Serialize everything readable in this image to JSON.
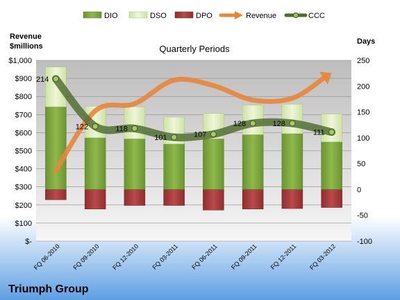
{
  "company": "Triumph Group",
  "colors": {
    "dio": "#7ba23f",
    "dso": "#d7e8b0",
    "dpo": "#a33a3a",
    "revenue": "#e8863a",
    "ccc": "#4e6b2e",
    "plot_bg_top": "#c8c8c8",
    "plot_bg_bottom": "#f4f4f4",
    "page_bg_top": "#ffffff",
    "page_bg_bottom": "#6aa8e6"
  },
  "chart_data": {
    "type": "bar",
    "title": "Quarterly Periods",
    "categories": [
      "FQ 06-2010",
      "FQ 09-2010",
      "FQ 12-2010",
      "FQ 03-2011",
      "FQ 06-2011",
      "FQ 09-2011",
      "FQ 12-2011",
      "FQ 03-2012"
    ],
    "legend": [
      "DIO",
      "DSO",
      "DPO",
      "Revenue",
      "CCC"
    ],
    "legend_position": "top",
    "left_axis": {
      "title_line1": "Revenue",
      "title_line2": "$millions",
      "range": [
        0,
        1000
      ],
      "ticks": [
        0,
        100,
        200,
        300,
        400,
        500,
        600,
        700,
        800,
        900,
        1000
      ],
      "tick_labels": [
        "$-",
        "$100",
        "$200",
        "$300",
        "$400",
        "$500",
        "$600",
        "$700",
        "$800",
        "$900",
        "$1,000"
      ]
    },
    "right_axis": {
      "title": "Days",
      "range": [
        -100,
        250
      ],
      "ticks": [
        -100,
        -50,
        0,
        50,
        100,
        150,
        200,
        250
      ],
      "tick_labels": [
        "-100",
        "-50",
        "0",
        "50",
        "100",
        "150",
        "200",
        "250"
      ]
    },
    "series": [
      {
        "name": "DIO",
        "axis": "days",
        "values": [
          160,
          100,
          98,
          88,
          98,
          106,
          108,
          92
        ]
      },
      {
        "name": "DSO",
        "axis": "days",
        "values": [
          77,
          61,
          62,
          52,
          49,
          57,
          57,
          54
        ]
      },
      {
        "name": "DPO",
        "axis": "days",
        "values": [
          -20,
          -38,
          -31,
          -31,
          -40,
          -38,
          -37,
          -35
        ]
      },
      {
        "name": "Revenue",
        "axis": "revenue",
        "values": [
          390,
          720,
          760,
          890,
          860,
          780,
          790,
          930
        ]
      },
      {
        "name": "CCC",
        "axis": "days",
        "values": [
          214,
          122,
          118,
          101,
          107,
          128,
          128,
          111
        ]
      }
    ],
    "ccc_labels": [
      "214",
      "122",
      "118",
      "101",
      "107",
      "128",
      "128",
      "111"
    ],
    "grid": true
  }
}
